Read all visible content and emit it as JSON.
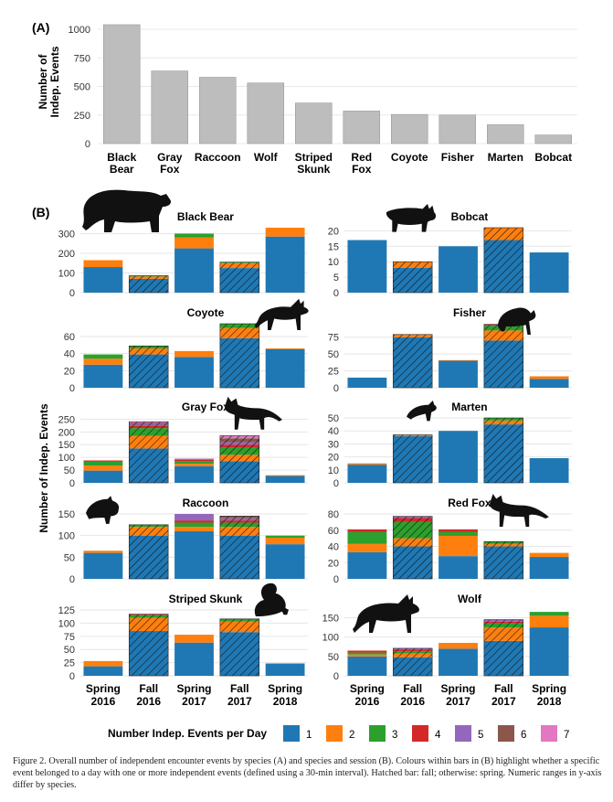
{
  "chart_data": [
    {
      "type": "bar",
      "panel_label": "(A)",
      "ylabel": "Number of Indep. Events",
      "categories": [
        "Black Bear",
        "Gray Fox",
        "Raccoon",
        "Wolf",
        "Striped Skunk",
        "Red Fox",
        "Coyote",
        "Fisher",
        "Marten",
        "Bobcat"
      ],
      "values": [
        1040,
        635,
        580,
        530,
        355,
        285,
        255,
        250,
        165,
        75
      ],
      "yticks": [
        0,
        250,
        500,
        750,
        1000
      ],
      "ylim": [
        0,
        1080
      ],
      "bar_color": "#bdbdbd",
      "grid": true
    },
    {
      "type": "bar",
      "subtype": "stacked small multiples",
      "panel_label": "(B)",
      "ylabel": "Number of Indep. Events",
      "sessions": [
        "Spring 2016",
        "Fall 2016",
        "Spring 2017",
        "Fall 2017",
        "Spring 2018"
      ],
      "hatched_sessions": [
        1,
        3
      ],
      "legend_title": "Number Indep. Events per Day",
      "legend_items": [
        "1",
        "2",
        "3",
        "4",
        "5",
        "6",
        "7"
      ],
      "colors": [
        "#1f78b4",
        "#ff7f0e",
        "#2ca02c",
        "#d62728",
        "#9467bd",
        "#8c564b",
        "#e377c2"
      ],
      "species": [
        {
          "name": "Black Bear",
          "icon": "black-bear-icon",
          "ymax": 330,
          "yticks": [
            0,
            100,
            200,
            300
          ],
          "stacks": [
            [
              130,
              35
            ],
            [
              70,
              12,
              4
            ],
            [
              225,
              55,
              20
            ],
            [
              125,
              25,
              5
            ],
            [
              285,
              45
            ]
          ]
        },
        {
          "name": "Bobcat",
          "icon": "bobcat-icon",
          "ymax": 21,
          "yticks": [
            0,
            5,
            10,
            15,
            20
          ],
          "stacks": [
            [
              17
            ],
            [
              8,
              2
            ],
            [
              15
            ],
            [
              17,
              4
            ],
            [
              13
            ]
          ]
        },
        {
          "name": "Coyote",
          "icon": "coyote-icon",
          "ymax": 75,
          "yticks": [
            0,
            20,
            40,
            60
          ],
          "stacks": [
            [
              27,
              7,
              5
            ],
            [
              39,
              7,
              3
            ],
            [
              36,
              7
            ],
            [
              58,
              12,
              5
            ],
            [
              45,
              1
            ]
          ]
        },
        {
          "name": "Fisher",
          "icon": "fisher-icon",
          "ymax": 95,
          "yticks": [
            0,
            25,
            50,
            75
          ],
          "stacks": [
            [
              15
            ],
            [
              75,
              4
            ],
            [
              40,
              1
            ],
            [
              70,
              15,
              7,
              2
            ],
            [
              13,
              4
            ]
          ]
        },
        {
          "name": "Gray Fox",
          "icon": "gray-fox-icon",
          "ymax": 255,
          "yticks": [
            0,
            50,
            100,
            150,
            200,
            250
          ],
          "stacks": [
            [
              48,
              20,
              15,
              5
            ],
            [
              135,
              50,
              30,
              10,
              5,
              5,
              5
            ],
            [
              65,
              10,
              10,
              5,
              5
            ],
            [
              85,
              25,
              30,
              10,
              10,
              15,
              10
            ],
            [
              27,
              3
            ]
          ]
        },
        {
          "name": "Marten",
          "icon": "marten-icon",
          "ymax": 50,
          "yticks": [
            0,
            10,
            20,
            30,
            40,
            50
          ],
          "stacks": [
            [
              14,
              1
            ],
            [
              36,
              1
            ],
            [
              40
            ],
            [
              45,
              3,
              2
            ],
            [
              19
            ]
          ]
        },
        {
          "name": "Raccoon",
          "icon": "raccoon-icon",
          "ymax": 150,
          "yticks": [
            0,
            50,
            100,
            150
          ],
          "stacks": [
            [
              60,
              5
            ],
            [
              100,
              20,
              5
            ],
            [
              110,
              10,
              10,
              5,
              15
            ],
            [
              100,
              20,
              10,
              5,
              5,
              5
            ],
            [
              80,
              15,
              5
            ]
          ]
        },
        {
          "name": "Red Fox",
          "icon": "red-fox-icon",
          "ymax": 80,
          "yticks": [
            0,
            20,
            40,
            60,
            80
          ],
          "stacks": [
            [
              33,
              10,
              15,
              3
            ],
            [
              40,
              10,
              20,
              5,
              2
            ],
            [
              28,
              25,
              5,
              3
            ],
            [
              40,
              3,
              3
            ],
            [
              27,
              5
            ]
          ]
        },
        {
          "name": "Striped Skunk",
          "icon": "striped-skunk-icon",
          "ymax": 125,
          "yticks": [
            0,
            25,
            50,
            75,
            100,
            125
          ],
          "stacks": [
            [
              18,
              10
            ],
            [
              85,
              25,
              5,
              2
            ],
            [
              63,
              15
            ],
            [
              83,
              20,
              5
            ],
            [
              23,
              1
            ]
          ]
        },
        {
          "name": "Wolf",
          "icon": "wolf-icon",
          "ymax": 170,
          "yticks": [
            0,
            50,
            100,
            150
          ],
          "stacks": [
            [
              50,
              5,
              5,
              5
            ],
            [
              48,
              10,
              5,
              5,
              3
            ],
            [
              70,
              15
            ],
            [
              90,
              35,
              10,
              5,
              5
            ],
            [
              125,
              30,
              10
            ]
          ]
        }
      ]
    }
  ],
  "caption": "Figure 2. Overall number of independent encounter events by species (A) and species and session (B). Colours within bars in (B) highlight whether a specific event belonged to a day with one or more independent events (defined using a 30-min interval). Hatched bar: fall; otherwise: spring. Numeric ranges in y-axis differ by species."
}
